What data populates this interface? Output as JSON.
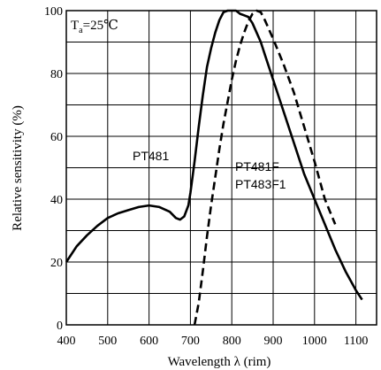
{
  "chart_data": {
    "type": "line",
    "title": "",
    "xlabel": "Wavelength λ  (rim)",
    "ylabel": "Relative sensitivity (%)",
    "xlim": [
      400,
      1150
    ],
    "ylim": [
      0,
      100
    ],
    "xticks": [
      "400",
      "500",
      "600",
      "700",
      "800",
      "900",
      "1000",
      "1100"
    ],
    "yticks": [
      "0",
      "20",
      "40",
      "60",
      "80",
      "100"
    ],
    "grid": true,
    "condition_prefix": "T",
    "condition_sub": "a",
    "condition_suffix": "=25℃",
    "series": [
      {
        "name": "PT481",
        "style": "solid",
        "x": [
          400,
          425,
          450,
          475,
          500,
          525,
          550,
          575,
          600,
          625,
          650,
          665,
          675,
          685,
          695,
          700,
          710,
          720,
          730,
          740,
          750,
          760,
          770,
          780,
          790,
          800,
          810,
          820,
          830,
          840,
          850,
          860,
          870,
          880,
          890,
          900,
          925,
          950,
          975,
          1000,
          1025,
          1050,
          1075,
          1100,
          1115
        ],
        "y": [
          20,
          25,
          28.5,
          31.5,
          34,
          35.5,
          36.5,
          37.5,
          38,
          37.5,
          36,
          34,
          33.5,
          34.5,
          38,
          42,
          52,
          63,
          73,
          82,
          88,
          93,
          97,
          99.5,
          100,
          100,
          100,
          99,
          98.5,
          98,
          96,
          93,
          90,
          86,
          82,
          78,
          68,
          58,
          48,
          40,
          32,
          24,
          17,
          11,
          8
        ]
      },
      {
        "name": "PT481F PT483F1",
        "style": "dashed",
        "x": [
          710,
          720,
          730,
          740,
          750,
          760,
          770,
          780,
          790,
          800,
          810,
          820,
          830,
          840,
          850,
          860,
          870,
          880,
          890,
          900,
          925,
          950,
          975,
          1000,
          1025,
          1050
        ],
        "y": [
          0,
          7,
          17,
          28,
          38,
          47,
          56,
          64,
          71,
          78,
          84,
          89,
          93,
          96.5,
          99,
          100,
          99.5,
          97,
          94,
          91,
          83,
          74,
          63,
          52,
          40,
          32
        ]
      }
    ],
    "annotations": [
      "PT481",
      "PT481F",
      "PT483F1"
    ]
  }
}
